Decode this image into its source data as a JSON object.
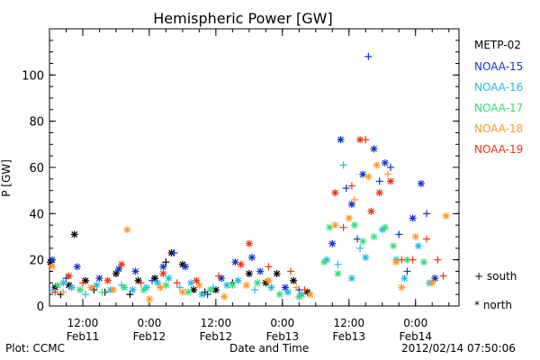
{
  "chart_data": {
    "type": "scatter",
    "title": "Hemispheric Power [GW]",
    "ylabel": "P [GW]",
    "xlabel": "Date and Time",
    "ylim": [
      0,
      120
    ],
    "yticks": [
      0,
      20,
      40,
      60,
      80,
      100
    ],
    "xlim": [
      "2012-02-11T06:00",
      "2012-02-14T07:50"
    ],
    "xticks": [
      {
        "t": "2012-02-11T12:00",
        "time": "12:00",
        "date": "Feb11"
      },
      {
        "t": "2012-02-12T00:00",
        "time": "0:00",
        "date": "Feb12"
      },
      {
        "t": "2012-02-12T12:00",
        "time": "12:00",
        "date": "Feb12"
      },
      {
        "t": "2012-02-13T00:00",
        "time": "0:00",
        "date": "Feb13"
      },
      {
        "t": "2012-02-13T12:00",
        "time": "12:00",
        "date": "Feb13"
      },
      {
        "t": "2012-02-14T00:00",
        "time": "0:00",
        "date": "Feb14"
      }
    ],
    "grid": false,
    "legend_position": "right",
    "markers": {
      "south": "+",
      "north": "*"
    },
    "series": [
      {
        "name": "METP-02",
        "color": "#000000",
        "points": [
          [
            "2012-02-11T06:10",
            19,
            "north"
          ],
          [
            "2012-02-11T07:00",
            8,
            "north"
          ],
          [
            "2012-02-11T08:00",
            5,
            "south"
          ],
          [
            "2012-02-11T09:30",
            9,
            "north"
          ],
          [
            "2012-02-11T10:30",
            31,
            "north"
          ],
          [
            "2012-02-11T12:30",
            11,
            "north"
          ],
          [
            "2012-02-11T14:00",
            7,
            "south"
          ],
          [
            "2012-02-11T16:00",
            6,
            "south"
          ],
          [
            "2012-02-11T18:00",
            14,
            "north"
          ],
          [
            "2012-02-11T20:30",
            5,
            "south"
          ],
          [
            "2012-02-11T22:00",
            11,
            "north"
          ],
          [
            "2012-02-12T01:00",
            12,
            "north"
          ],
          [
            "2012-02-12T03:00",
            19,
            "south"
          ],
          [
            "2012-02-12T04:00",
            23,
            "north"
          ],
          [
            "2012-02-12T06:00",
            18,
            "north"
          ],
          [
            "2012-02-12T08:00",
            7,
            "north"
          ],
          [
            "2012-02-12T10:00",
            6,
            "south"
          ],
          [
            "2012-02-12T12:00",
            7,
            "north"
          ],
          [
            "2012-02-12T15:00",
            10,
            "south"
          ],
          [
            "2012-02-12T18:00",
            14,
            "north"
          ],
          [
            "2012-02-12T21:00",
            10,
            "north"
          ],
          [
            "2012-02-12T23:00",
            14,
            "north"
          ],
          [
            "2012-02-13T02:00",
            11,
            "north"
          ],
          [
            "2012-02-13T04:30",
            6,
            "north"
          ]
        ]
      },
      {
        "name": "NOAA-15",
        "color": "#1133cc",
        "points": [
          [
            "2012-02-11T06:30",
            20,
            "north"
          ],
          [
            "2012-02-11T09:00",
            12,
            "south"
          ],
          [
            "2012-02-11T11:00",
            17,
            "north"
          ],
          [
            "2012-02-11T15:00",
            12,
            "north"
          ],
          [
            "2012-02-11T18:30",
            16,
            "north"
          ],
          [
            "2012-02-11T21:30",
            15,
            "north"
          ],
          [
            "2012-02-12T00:30",
            11,
            "south"
          ],
          [
            "2012-02-12T02:30",
            17,
            "north"
          ],
          [
            "2012-02-12T04:30",
            23,
            "south"
          ],
          [
            "2012-02-12T06:30",
            17,
            "north"
          ],
          [
            "2012-02-12T10:30",
            5,
            "south"
          ],
          [
            "2012-02-12T13:00",
            12,
            "north"
          ],
          [
            "2012-02-12T15:30",
            19,
            "north"
          ],
          [
            "2012-02-12T18:30",
            21,
            "north"
          ],
          [
            "2012-02-12T20:00",
            15,
            "north"
          ],
          [
            "2012-02-13T00:30",
            8,
            "north"
          ],
          [
            "2012-02-13T03:00",
            7,
            "south"
          ],
          [
            "2012-02-13T09:00",
            27,
            "north"
          ],
          [
            "2012-02-13T10:30",
            72,
            "north"
          ],
          [
            "2012-02-13T11:30",
            51,
            "south"
          ],
          [
            "2012-02-13T12:30",
            44,
            "north"
          ],
          [
            "2012-02-13T13:30",
            29,
            "south"
          ],
          [
            "2012-02-13T14:30",
            57,
            "north"
          ],
          [
            "2012-02-13T15:30",
            108,
            "south"
          ],
          [
            "2012-02-13T16:30",
            68,
            "north"
          ],
          [
            "2012-02-13T17:30",
            54,
            "south"
          ],
          [
            "2012-02-13T18:30",
            62,
            "north"
          ],
          [
            "2012-02-13T19:30",
            60,
            "south"
          ],
          [
            "2012-02-13T21:00",
            31,
            "south"
          ],
          [
            "2012-02-13T22:30",
            15,
            "south"
          ],
          [
            "2012-02-13T23:30",
            38,
            "north"
          ],
          [
            "2012-02-14T01:00",
            53,
            "north"
          ],
          [
            "2012-02-14T02:00",
            40,
            "south"
          ],
          [
            "2012-02-14T03:30",
            12,
            "north"
          ]
        ]
      },
      {
        "name": "NOAA-16",
        "color": "#22bbdd",
        "points": [
          [
            "2012-02-11T06:30",
            7,
            "south"
          ],
          [
            "2012-02-11T08:30",
            10,
            "north"
          ],
          [
            "2012-02-11T10:00",
            8,
            "north"
          ],
          [
            "2012-02-11T12:30",
            5,
            "south"
          ],
          [
            "2012-02-11T14:30",
            9,
            "north"
          ],
          [
            "2012-02-11T17:00",
            7,
            "north"
          ],
          [
            "2012-02-11T19:00",
            9,
            "south"
          ],
          [
            "2012-02-11T21:00",
            7,
            "north"
          ],
          [
            "2012-02-11T23:30",
            8,
            "north"
          ],
          [
            "2012-02-12T01:30",
            10,
            "north"
          ],
          [
            "2012-02-12T03:30",
            12,
            "north"
          ],
          [
            "2012-02-12T05:30",
            8,
            "south"
          ],
          [
            "2012-02-12T07:30",
            10,
            "north"
          ],
          [
            "2012-02-12T09:30",
            5,
            "north"
          ],
          [
            "2012-02-12T11:30",
            8,
            "south"
          ],
          [
            "2012-02-12T14:00",
            9,
            "north"
          ],
          [
            "2012-02-12T16:00",
            11,
            "north"
          ],
          [
            "2012-02-12T19:00",
            7,
            "south"
          ],
          [
            "2012-02-12T22:00",
            8,
            "north"
          ],
          [
            "2012-02-13T01:00",
            6,
            "north"
          ],
          [
            "2012-02-13T03:30",
            5,
            "north"
          ],
          [
            "2012-02-13T08:00",
            20,
            "north"
          ],
          [
            "2012-02-13T10:00",
            18,
            "south"
          ],
          [
            "2012-02-13T11:00",
            61,
            "south"
          ],
          [
            "2012-02-13T12:30",
            12,
            "north"
          ],
          [
            "2012-02-13T14:00",
            25,
            "south"
          ],
          [
            "2012-02-13T15:00",
            21,
            "north"
          ],
          [
            "2012-02-13T18:00",
            33,
            "north"
          ],
          [
            "2012-02-13T20:30",
            20,
            "north"
          ],
          [
            "2012-02-13T22:00",
            12,
            "north"
          ],
          [
            "2012-02-14T00:30",
            26,
            "north"
          ],
          [
            "2012-02-14T02:30",
            10,
            "north"
          ]
        ]
      },
      {
        "name": "NOAA-17",
        "color": "#33dd77",
        "points": [
          [
            "2012-02-11T07:30",
            9,
            "north"
          ],
          [
            "2012-02-11T11:30",
            7,
            "north"
          ],
          [
            "2012-02-11T15:30",
            6,
            "south"
          ],
          [
            "2012-02-11T19:30",
            8,
            "north"
          ],
          [
            "2012-02-11T23:00",
            7,
            "north"
          ],
          [
            "2012-02-12T03:00",
            9,
            "north"
          ],
          [
            "2012-02-12T07:00",
            6,
            "north"
          ],
          [
            "2012-02-12T11:00",
            7,
            "north"
          ],
          [
            "2012-02-12T15:00",
            9,
            "north"
          ],
          [
            "2012-02-12T19:30",
            10,
            "north"
          ],
          [
            "2012-02-12T23:30",
            5,
            "north"
          ],
          [
            "2012-02-13T03:00",
            4,
            "north"
          ],
          [
            "2012-02-13T07:30",
            19,
            "north"
          ],
          [
            "2012-02-13T08:30",
            34,
            "north"
          ],
          [
            "2012-02-13T10:00",
            14,
            "north"
          ],
          [
            "2012-02-13T13:00",
            35,
            "north"
          ],
          [
            "2012-02-13T14:30",
            28,
            "north"
          ],
          [
            "2012-02-13T16:30",
            30,
            "north"
          ],
          [
            "2012-02-13T18:30",
            34,
            "north"
          ],
          [
            "2012-02-13T20:00",
            26,
            "north"
          ],
          [
            "2012-02-13T22:30",
            20,
            "north"
          ],
          [
            "2012-02-14T01:30",
            19,
            "north"
          ]
        ]
      },
      {
        "name": "NOAA-18",
        "color": "#ff9922",
        "points": [
          [
            "2012-02-11T06:30",
            17,
            "north"
          ],
          [
            "2012-02-11T08:30",
            6,
            "south"
          ],
          [
            "2012-02-11T13:30",
            8,
            "north"
          ],
          [
            "2012-02-11T17:30",
            7,
            "north"
          ],
          [
            "2012-02-11T20:00",
            33,
            "north"
          ],
          [
            "2012-02-12T00:00",
            3,
            "north"
          ],
          [
            "2012-02-12T02:00",
            8,
            "north"
          ],
          [
            "2012-02-12T06:00",
            6,
            "north"
          ],
          [
            "2012-02-12T09:00",
            9,
            "north"
          ],
          [
            "2012-02-12T13:30",
            4,
            "north"
          ],
          [
            "2012-02-12T17:30",
            9,
            "north"
          ],
          [
            "2012-02-12T21:30",
            11,
            "north"
          ],
          [
            "2012-02-13T02:30",
            8,
            "south"
          ],
          [
            "2012-02-13T05:00",
            5,
            "north"
          ],
          [
            "2012-02-13T09:30",
            35,
            "north"
          ],
          [
            "2012-02-13T12:00",
            38,
            "north"
          ],
          [
            "2012-02-13T13:00",
            46,
            "south"
          ],
          [
            "2012-02-13T15:30",
            56,
            "north"
          ],
          [
            "2012-02-13T17:00",
            61,
            "north"
          ],
          [
            "2012-02-13T19:00",
            57,
            "south"
          ],
          [
            "2012-02-13T20:30",
            19,
            "north"
          ],
          [
            "2012-02-13T21:30",
            8,
            "north"
          ],
          [
            "2012-02-14T00:00",
            30,
            "north"
          ],
          [
            "2012-02-14T03:00",
            10,
            "north"
          ],
          [
            "2012-02-14T05:30",
            39,
            "north"
          ]
        ]
      },
      {
        "name": "NOAA-19",
        "color": "#ee3311",
        "points": [
          [
            "2012-02-11T07:00",
            6,
            "south"
          ],
          [
            "2012-02-11T09:30",
            13,
            "north"
          ],
          [
            "2012-02-11T12:00",
            10,
            "south"
          ],
          [
            "2012-02-11T16:30",
            11,
            "north"
          ],
          [
            "2012-02-11T19:00",
            18,
            "north"
          ],
          [
            "2012-02-11T22:30",
            10,
            "south"
          ],
          [
            "2012-02-12T02:30",
            14,
            "north"
          ],
          [
            "2012-02-12T05:00",
            10,
            "south"
          ],
          [
            "2012-02-12T08:30",
            11,
            "north"
          ],
          [
            "2012-02-12T12:30",
            13,
            "south"
          ],
          [
            "2012-02-12T16:30",
            18,
            "north"
          ],
          [
            "2012-02-12T18:00",
            27,
            "north"
          ],
          [
            "2012-02-12T21:30",
            17,
            "south"
          ],
          [
            "2012-02-13T01:30",
            15,
            "south"
          ],
          [
            "2012-02-13T04:00",
            7,
            "south"
          ],
          [
            "2012-02-13T09:30",
            49,
            "north"
          ],
          [
            "2012-02-13T11:00",
            34,
            "south"
          ],
          [
            "2012-02-13T12:30",
            52,
            "south"
          ],
          [
            "2012-02-13T14:00",
            72,
            "north"
          ],
          [
            "2012-02-13T15:00",
            72,
            "south"
          ],
          [
            "2012-02-13T16:00",
            41,
            "north"
          ],
          [
            "2012-02-13T17:30",
            49,
            "north"
          ],
          [
            "2012-02-13T19:30",
            54,
            "north"
          ],
          [
            "2012-02-13T21:30",
            20,
            "south"
          ],
          [
            "2012-02-13T23:30",
            20,
            "south"
          ],
          [
            "2012-02-14T02:00",
            29,
            "south"
          ],
          [
            "2012-02-14T04:00",
            20,
            "south"
          ],
          [
            "2012-02-14T05:00",
            13,
            "south"
          ]
        ]
      }
    ]
  },
  "legend": {
    "items": [
      {
        "label": "METP-02",
        "color": "#000000"
      },
      {
        "label": "NOAA-15",
        "color": "#1133cc"
      },
      {
        "label": "NOAA-16",
        "color": "#22bbdd"
      },
      {
        "label": "NOAA-17",
        "color": "#33dd77"
      },
      {
        "label": "NOAA-18",
        "color": "#ff9922"
      },
      {
        "label": "NOAA-19",
        "color": "#ee3311"
      }
    ],
    "south": "+ south",
    "north": "* north"
  },
  "footer": {
    "plot_source": "Plot: CCMC",
    "timestamp": "2012/02/14 07:50:06"
  }
}
